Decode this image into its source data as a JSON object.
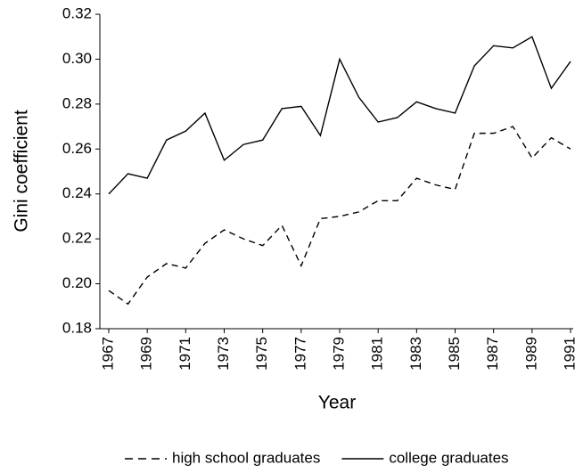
{
  "chart_data": {
    "type": "line",
    "x_label": "Year",
    "y_label": "Gini coefficient",
    "x": [
      1967,
      1968,
      1969,
      1970,
      1971,
      1972,
      1973,
      1974,
      1975,
      1976,
      1977,
      1978,
      1979,
      1980,
      1981,
      1982,
      1983,
      1984,
      1985,
      1986,
      1987,
      1988,
      1989,
      1990,
      1991
    ],
    "series": [
      {
        "name": "high school graduates",
        "color": "#000000",
        "style": "dashed",
        "values": [
          0.197,
          0.191,
          0.203,
          0.209,
          0.207,
          0.218,
          0.224,
          0.22,
          0.217,
          0.226,
          0.208,
          0.229,
          0.23,
          0.232,
          0.237,
          0.237,
          0.247,
          0.244,
          0.242,
          0.267,
          0.267,
          0.27,
          0.256,
          0.265,
          0.26
        ]
      },
      {
        "name": "college graduates",
        "color": "#000000",
        "style": "solid",
        "values": [
          0.24,
          0.249,
          0.247,
          0.264,
          0.268,
          0.276,
          0.255,
          0.262,
          0.264,
          0.278,
          0.279,
          0.266,
          0.3,
          0.283,
          0.272,
          0.274,
          0.281,
          0.278,
          0.276,
          0.297,
          0.306,
          0.305,
          0.31,
          0.287,
          0.299
        ]
      }
    ],
    "xlim": [
      1967,
      1991
    ],
    "xticks": [
      1967,
      1969,
      1971,
      1973,
      1975,
      1977,
      1979,
      1981,
      1983,
      1985,
      1987,
      1989,
      1991
    ],
    "ylim": [
      0.18,
      0.32
    ],
    "yticks": [
      0.18,
      {
        "value": 0.2,
        "label": "0.20"
      },
      0.22,
      0.24,
      0.26,
      0.28,
      {
        "value": 0.3,
        "label": "0.30"
      },
      0.32
    ],
    "grid": false,
    "legend": "bottom"
  }
}
